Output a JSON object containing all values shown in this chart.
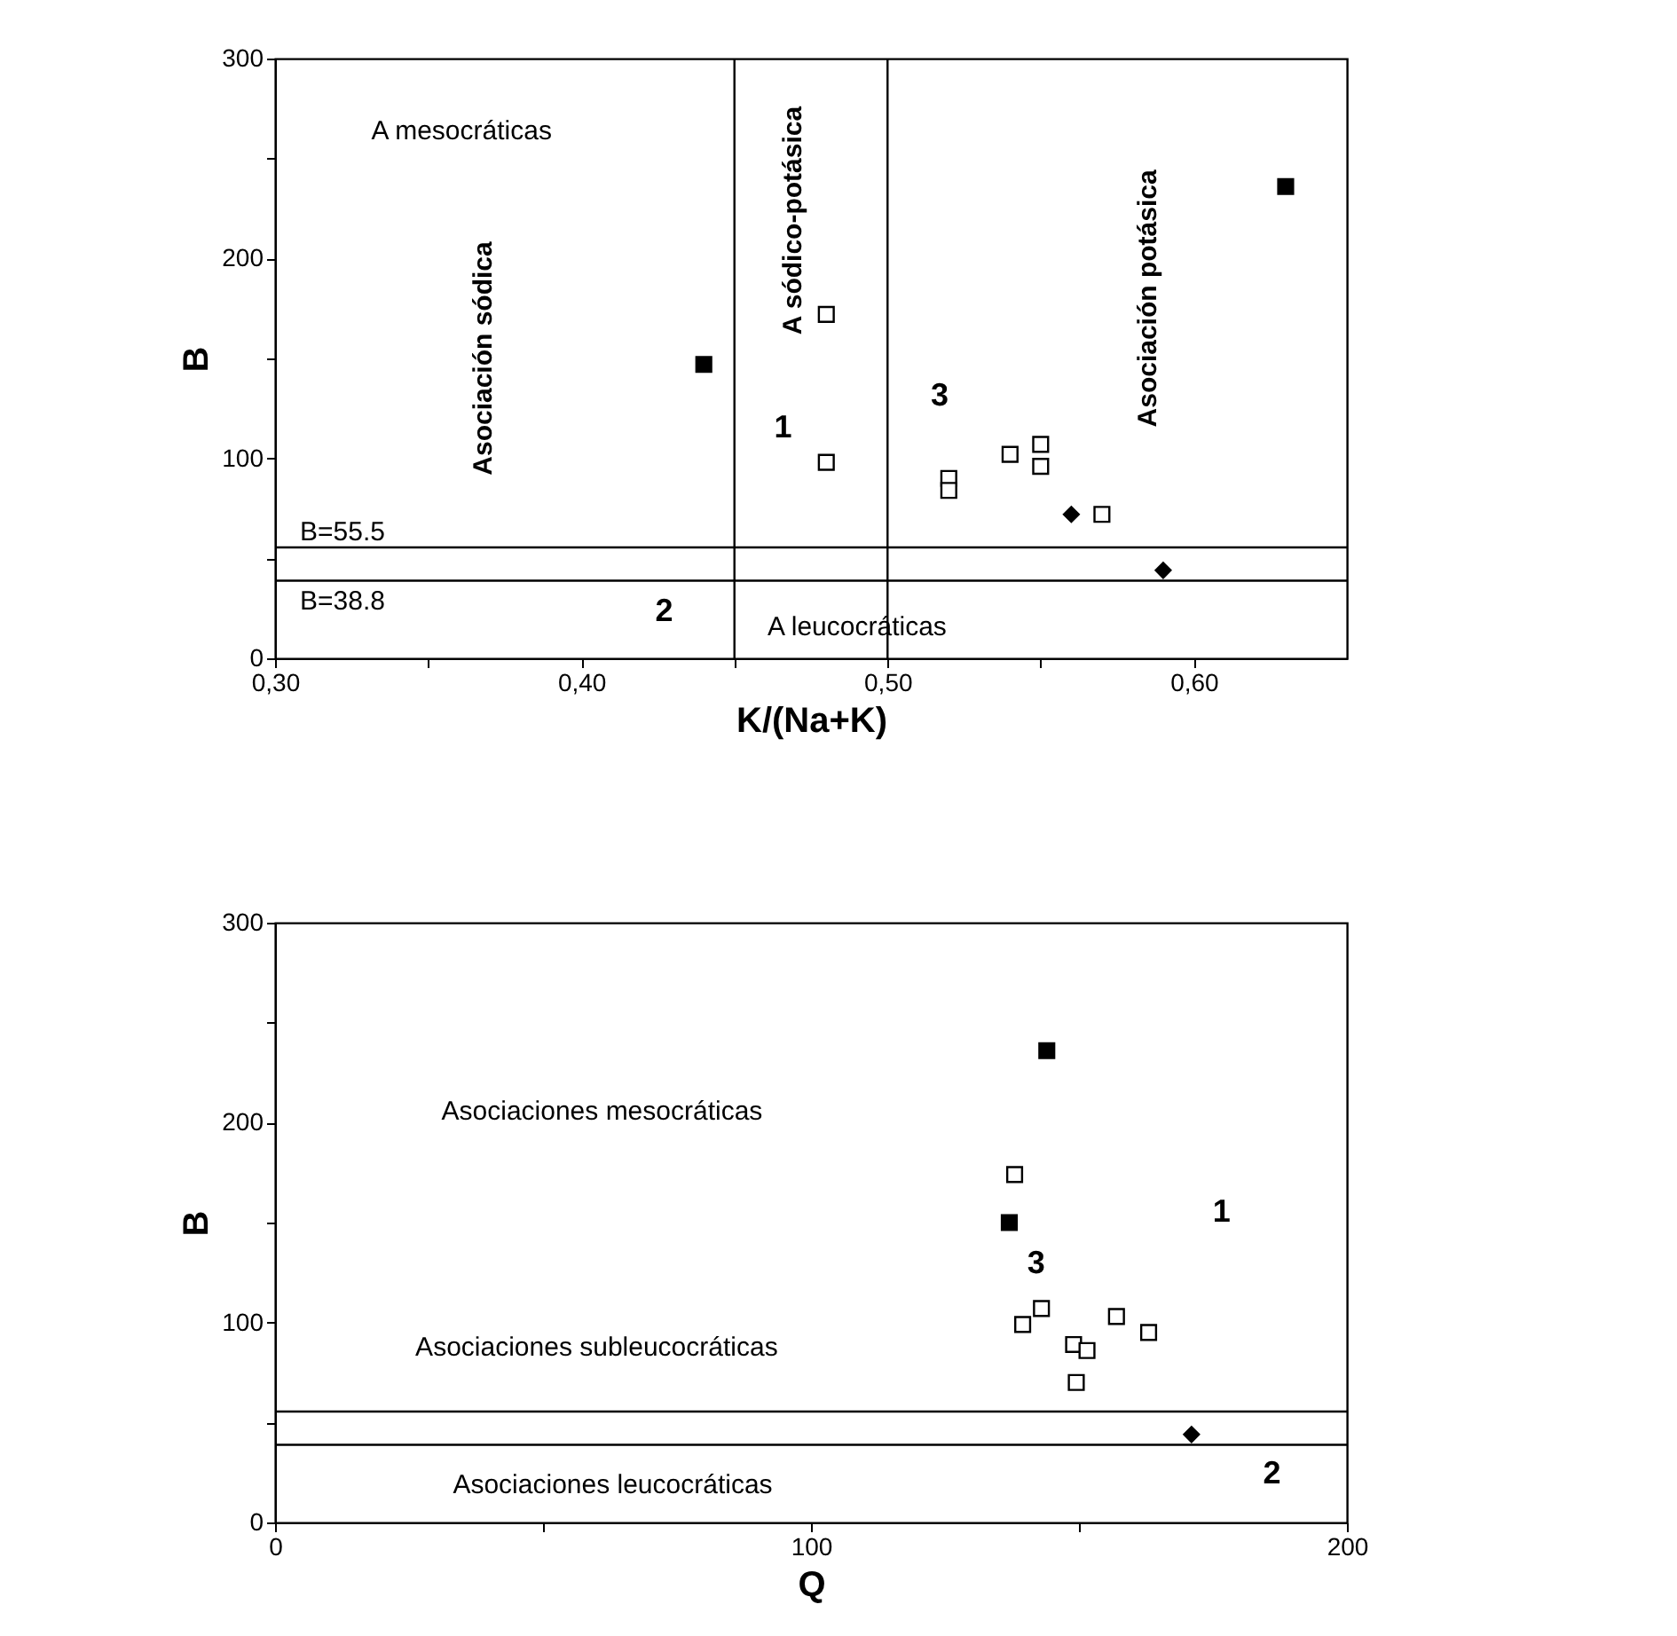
{
  "chart_data": [
    {
      "type": "scatter",
      "xlabel": "K/(Na+K)",
      "ylabel": "B",
      "xlim": [
        0.3,
        0.65
      ],
      "xticks": [
        {
          "value": 0.3,
          "label": "0,30"
        },
        {
          "value": 0.35,
          "label": null
        },
        {
          "value": 0.4,
          "label": "0,40"
        },
        {
          "value": 0.45,
          "label": null
        },
        {
          "value": 0.5,
          "label": "0,50"
        },
        {
          "value": 0.55,
          "label": null
        },
        {
          "value": 0.6,
          "label": "0,60"
        }
      ],
      "ylim": [
        0,
        300
      ],
      "yticks": [
        0,
        {
          "value": 50,
          "label": null
        },
        100,
        {
          "value": 150,
          "label": null
        },
        200,
        {
          "value": 250,
          "label": null
        },
        300
      ],
      "series": [
        {
          "color": "#000000",
          "marker": "square",
          "x": [
            0.44,
            0.63
          ],
          "values": [
            147,
            236
          ]
        },
        {
          "color": "#ffffff",
          "marker": "square",
          "x": [
            0.48,
            0.48,
            0.52,
            0.52,
            0.54,
            0.55,
            0.55,
            0.57
          ],
          "values": [
            172,
            98,
            90,
            84,
            102,
            107,
            96,
            72
          ]
        },
        {
          "color": "#000000",
          "marker": "diamond",
          "x": [
            0.56,
            0.59
          ],
          "values": [
            72,
            44
          ]
        }
      ],
      "ref_lines": [
        {
          "axis": "y",
          "value": 55.5,
          "label": "B=55.5"
        },
        {
          "axis": "y",
          "value": 38.8,
          "label": "B=38.8"
        },
        {
          "axis": "x",
          "value": 0.45
        },
        {
          "axis": "x",
          "value": 0.5
        }
      ],
      "annotations": [
        "A mesocráticas",
        "Asociación sódica",
        "A sódico-potásica",
        "Asociación potásica",
        "A leucocráticas",
        "1",
        "2",
        "3"
      ]
    },
    {
      "type": "scatter",
      "xlabel": "Q",
      "ylabel": "B",
      "xlim": [
        0,
        200
      ],
      "xticks": [
        0,
        {
          "value": 50,
          "label": null
        },
        100,
        {
          "value": 150,
          "label": null
        },
        200
      ],
      "ylim": [
        0,
        300
      ],
      "yticks": [
        0,
        {
          "value": 50,
          "label": null
        },
        100,
        {
          "value": 150,
          "label": null
        },
        200,
        {
          "value": 250,
          "label": null
        },
        300
      ],
      "series": [
        {
          "color": "#000000",
          "marker": "square",
          "x": [
            144,
            137
          ],
          "values": [
            236,
            150
          ]
        },
        {
          "color": "#ffffff",
          "marker": "square",
          "x": [
            138,
            139.5,
            143,
            149,
            151.5,
            149.5,
            157,
            163
          ],
          "values": [
            174,
            99,
            107,
            89,
            86,
            70,
            103,
            95
          ]
        },
        {
          "color": "#000000",
          "marker": "diamond",
          "x": [
            171
          ],
          "values": [
            44
          ]
        }
      ],
      "ref_lines": [
        {
          "axis": "y",
          "value": 55.5
        },
        {
          "axis": "y",
          "value": 38.8
        }
      ],
      "annotations": [
        "Asociaciones mesocráticas",
        "Asociaciones subleucocráticas",
        "Asociaciones leucocráticas",
        "1",
        "2",
        "3"
      ]
    }
  ]
}
